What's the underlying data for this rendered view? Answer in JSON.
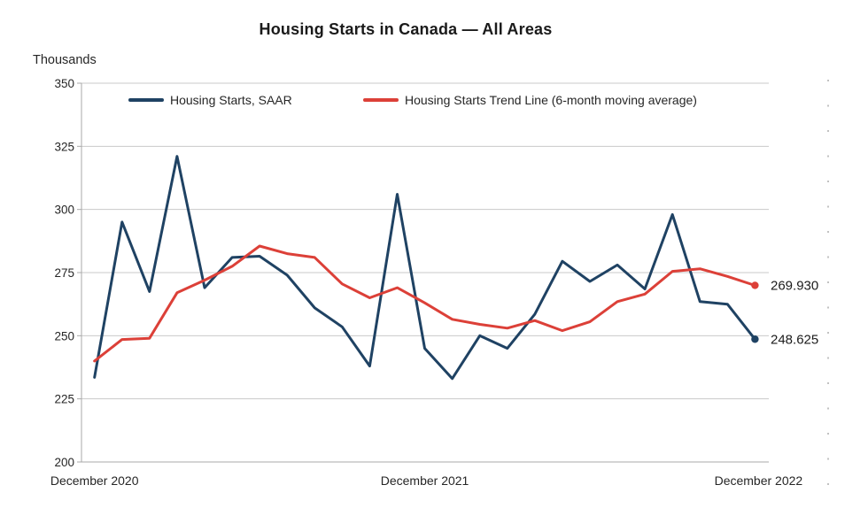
{
  "title": "Housing Starts in Canada — All Areas",
  "y_axis_title": "Thousands",
  "legend": {
    "items": [
      {
        "label": "Housing Starts, SAAR",
        "color": "#1f4263"
      },
      {
        "label": "Housing Starts Trend Line (6-month moving average)",
        "color": "#dc4038"
      }
    ]
  },
  "end_labels": {
    "trend": "269.930",
    "saar": "248.625"
  },
  "chart_data": {
    "type": "line",
    "title": "Housing Starts in Canada — All Areas",
    "ylabel": "Thousands",
    "ylim": [
      200,
      350
    ],
    "y_ticks": [
      200,
      225,
      250,
      275,
      300,
      325,
      350
    ],
    "grid": true,
    "legend_position": "top",
    "x": [
      "Dec 2020",
      "Jan 2021",
      "Feb 2021",
      "Mar 2021",
      "Apr 2021",
      "May 2021",
      "Jun 2021",
      "Jul 2021",
      "Aug 2021",
      "Sep 2021",
      "Oct 2021",
      "Nov 2021",
      "Dec 2021",
      "Jan 2022",
      "Feb 2022",
      "Mar 2022",
      "Apr 2022",
      "May 2022",
      "Jun 2022",
      "Jul 2022",
      "Aug 2022",
      "Sep 2022",
      "Oct 2022",
      "Nov 2022",
      "Dec 2022"
    ],
    "x_visible_tick_labels": [
      "December 2020",
      "December 2021",
      "December 2022"
    ],
    "x_visible_tick_indices": [
      0,
      12,
      24
    ],
    "series": [
      {
        "name": "Housing Starts, SAAR",
        "color": "#1f4263",
        "values": [
          233.5,
          295,
          267.5,
          321,
          269,
          281,
          281.5,
          274,
          261,
          253.5,
          238,
          306,
          245,
          233,
          250,
          245,
          258.5,
          279.5,
          271.5,
          278,
          268.5,
          298,
          263.5,
          262.5,
          248.625
        ],
        "end_label": "248.625",
        "end_marker": true
      },
      {
        "name": "Housing Starts Trend Line (6-month moving average)",
        "color": "#dc4038",
        "values": [
          240,
          248.5,
          249,
          267,
          272,
          277.5,
          285.5,
          282.5,
          281,
          270.5,
          265,
          269,
          263,
          256.5,
          254.5,
          253,
          256,
          252,
          255.5,
          263.5,
          266.5,
          275.5,
          276.5,
          273.5,
          269.93
        ],
        "end_label": "269.930",
        "end_marker": true
      }
    ]
  }
}
